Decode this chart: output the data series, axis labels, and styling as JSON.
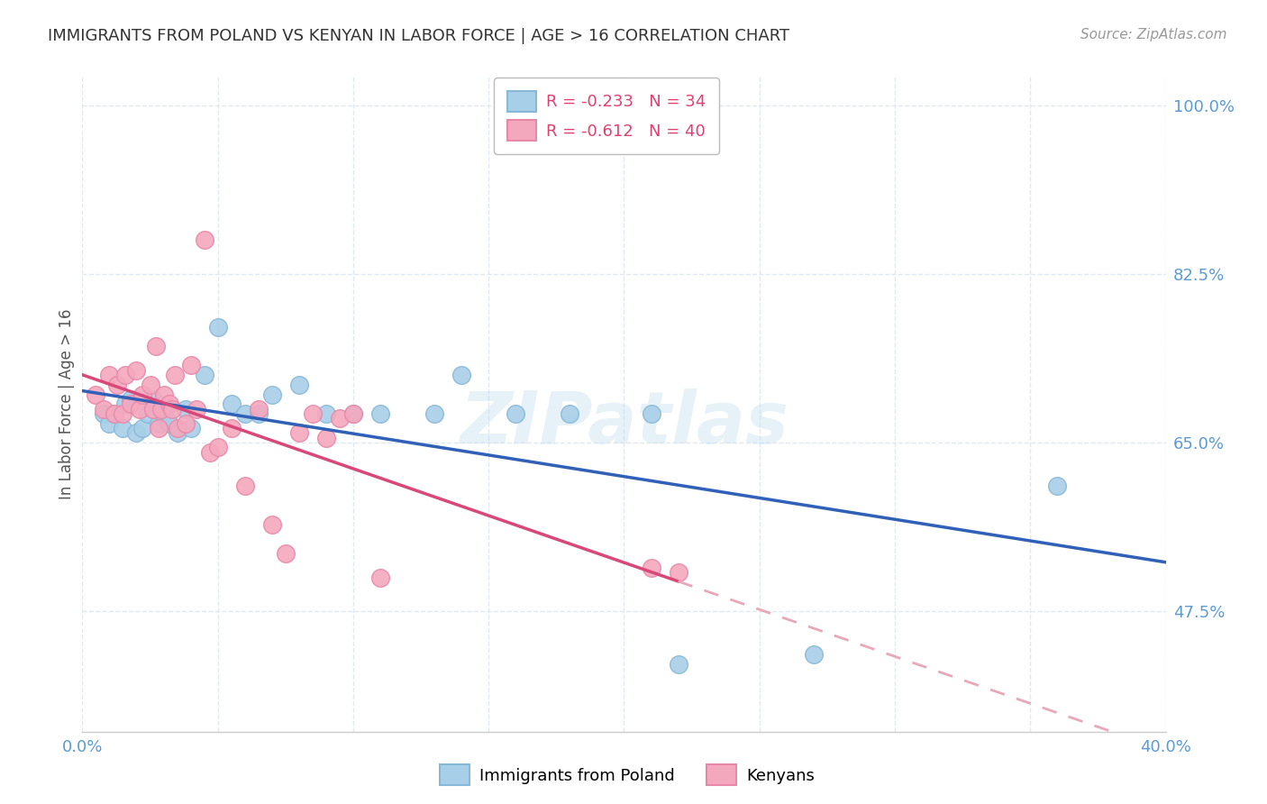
{
  "title": "IMMIGRANTS FROM POLAND VS KENYAN IN LABOR FORCE | AGE > 16 CORRELATION CHART",
  "source": "Source: ZipAtlas.com",
  "ylabel_label": "In Labor Force | Age > 16",
  "xlim": [
    0.0,
    0.4
  ],
  "ylim": [
    0.35,
    1.03
  ],
  "background_color": "#ffffff",
  "grid_color": "#e0e8f0",
  "title_color": "#333333",
  "axis_color": "#5b9bd5",
  "poland_color": "#a8cfe8",
  "kenya_color": "#f4a8be",
  "poland_edge_color": "#88b8d8",
  "kenya_edge_color": "#e888a8",
  "trend_poland_color": "#3060b8",
  "trend_kenya_color": "#d84878",
  "trend_kenya_dash_color": "#e8a8b8",
  "watermark": "ZIPatlas",
  "poland_x": [
    0.008,
    0.01,
    0.012,
    0.015,
    0.016,
    0.018,
    0.02,
    0.022,
    0.024,
    0.026,
    0.028,
    0.03,
    0.032,
    0.035,
    0.038,
    0.04,
    0.045,
    0.05,
    0.055,
    0.06,
    0.065,
    0.07,
    0.08,
    0.09,
    0.1,
    0.11,
    0.13,
    0.14,
    0.16,
    0.18,
    0.21,
    0.22,
    0.27,
    0.36
  ],
  "poland_y": [
    0.68,
    0.67,
    0.68,
    0.665,
    0.69,
    0.695,
    0.66,
    0.665,
    0.68,
    0.695,
    0.67,
    0.68,
    0.67,
    0.66,
    0.685,
    0.665,
    0.72,
    0.77,
    0.69,
    0.68,
    0.68,
    0.7,
    0.71,
    0.68,
    0.68,
    0.68,
    0.68,
    0.72,
    0.68,
    0.68,
    0.68,
    0.42,
    0.43,
    0.605
  ],
  "kenya_x": [
    0.005,
    0.008,
    0.01,
    0.012,
    0.013,
    0.015,
    0.016,
    0.018,
    0.02,
    0.021,
    0.022,
    0.025,
    0.026,
    0.027,
    0.028,
    0.029,
    0.03,
    0.032,
    0.033,
    0.034,
    0.035,
    0.038,
    0.04,
    0.042,
    0.045,
    0.047,
    0.05,
    0.055,
    0.06,
    0.065,
    0.07,
    0.075,
    0.08,
    0.085,
    0.09,
    0.095,
    0.1,
    0.11,
    0.21,
    0.22
  ],
  "kenya_y": [
    0.7,
    0.685,
    0.72,
    0.68,
    0.71,
    0.68,
    0.72,
    0.69,
    0.725,
    0.685,
    0.7,
    0.71,
    0.685,
    0.75,
    0.665,
    0.685,
    0.7,
    0.69,
    0.685,
    0.72,
    0.665,
    0.67,
    0.73,
    0.685,
    0.86,
    0.64,
    0.645,
    0.665,
    0.605,
    0.685,
    0.565,
    0.535,
    0.66,
    0.68,
    0.655,
    0.675,
    0.68,
    0.51,
    0.52,
    0.515
  ],
  "legend_r_poland": "-0.233",
  "legend_n_poland": "34",
  "legend_r_kenya": "-0.612",
  "legend_n_kenya": "40",
  "legend_color_r": "#e04070",
  "legend_color_n": "#2060c0"
}
